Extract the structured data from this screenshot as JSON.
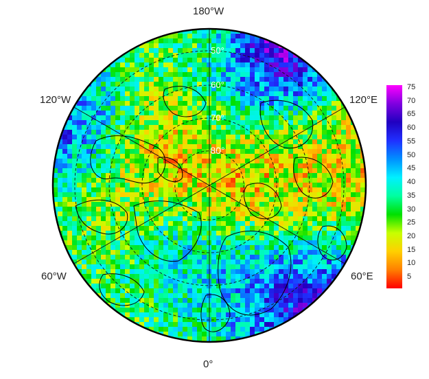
{
  "map": {
    "projection": "north-polar-stereographic",
    "longitude_labels": {
      "top": "180°W",
      "upper_left": "120°W",
      "upper_right": "120°E",
      "lower_left": "60°W",
      "lower_right": "60°E",
      "bottom": "0°"
    },
    "latitude_labels": [
      "50°",
      "60°",
      "70°",
      "80°"
    ],
    "graticule_style": "dashed"
  },
  "colorbar": {
    "ticks": [
      "5",
      "10",
      "15",
      "20",
      "25",
      "30",
      "35",
      "40",
      "45",
      "50",
      "55",
      "60",
      "65",
      "70",
      "75"
    ],
    "range": [
      1,
      76
    ],
    "colors": [
      "#ff0000",
      "#ff7f00",
      "#ffd000",
      "#c8ff00",
      "#00e000",
      "#00ffa0",
      "#00f0ff",
      "#0090ff",
      "#2030ff",
      "#2000c0",
      "#8000e0",
      "#ff00ff"
    ]
  }
}
